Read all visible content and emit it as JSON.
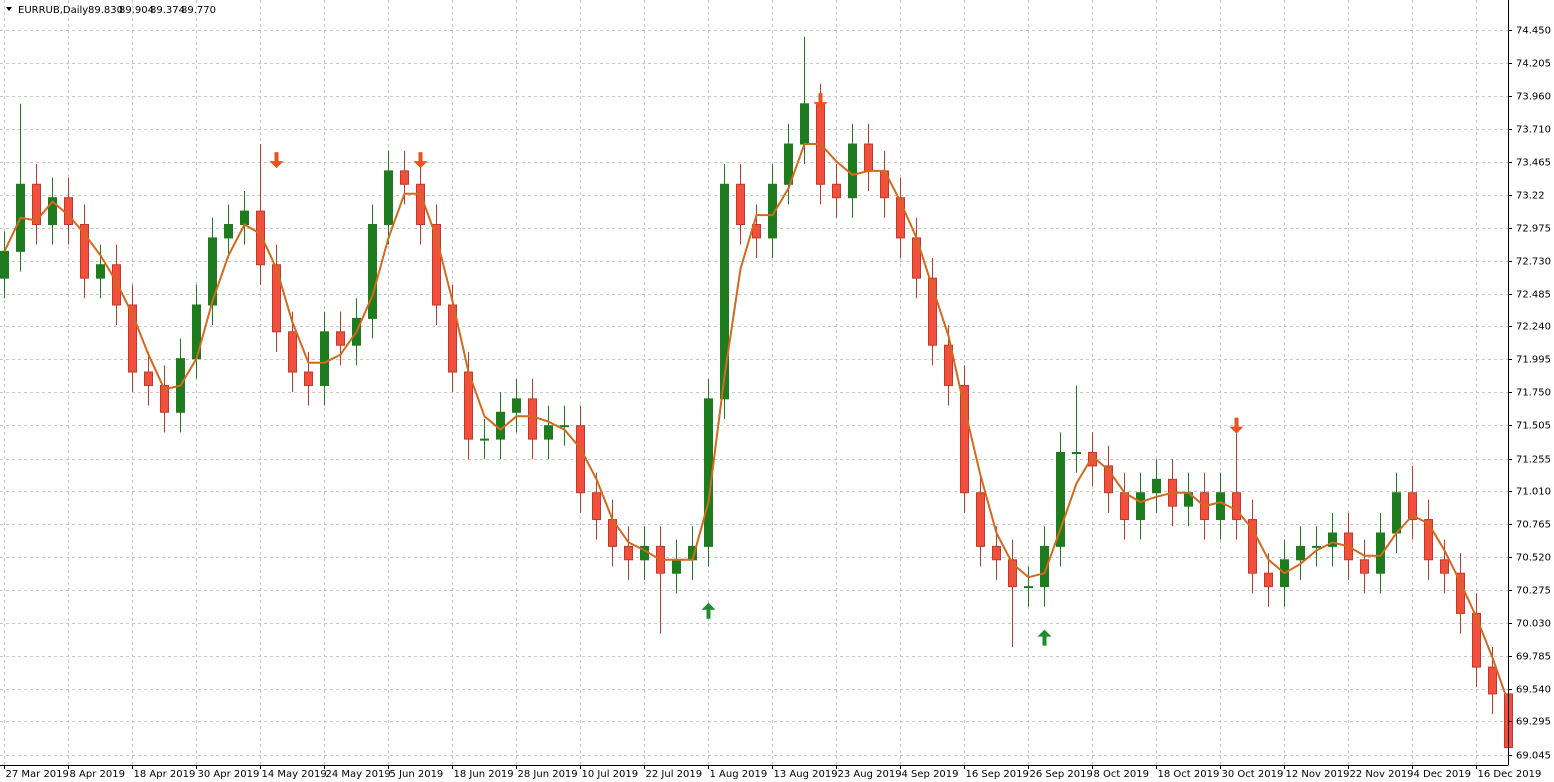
{
  "header": {
    "symbol": "EURRUB,Daily",
    "quote": [
      "89.830",
      "89.904",
      "89.374",
      "89.770"
    ]
  },
  "chart_data": {
    "type": "candlestick",
    "categories": [
      "27 Mar 2019",
      null,
      null,
      null,
      "8 Apr 2019",
      null,
      null,
      null,
      "18 Apr 2019",
      null,
      null,
      null,
      "30 Apr 2019",
      null,
      null,
      null,
      "14 May 2019",
      null,
      null,
      null,
      "24 May 2019",
      null,
      null,
      null,
      "5 Jun 2019",
      null,
      null,
      null,
      "18 Jun 2019",
      null,
      null,
      null,
      "28 Jun 2019",
      null,
      null,
      null,
      "10 Jul 2019",
      null,
      null,
      null,
      "22 Jul 2019",
      null,
      null,
      null,
      "1 Aug 2019",
      null,
      null,
      null,
      "13 Aug 2019",
      null,
      null,
      null,
      "23 Aug 2019",
      null,
      null,
      null,
      "4 Sep 2019",
      null,
      null,
      null,
      "16 Sep 2019",
      null,
      null,
      null,
      "26 Sep 2019",
      null,
      null,
      null,
      "8 Oct 2019",
      null,
      null,
      null,
      "18 Oct 2019",
      null,
      null,
      null,
      "30 Oct 2019",
      null,
      null,
      null,
      "12 Nov 2019",
      null,
      null,
      null,
      "22 Nov 2019",
      null,
      null,
      null,
      "4 Dec 2019",
      null,
      null,
      null,
      "16 Dec 2019",
      null,
      null
    ],
    "open": [
      72.6,
      72.8,
      73.3,
      73.0,
      73.2,
      73.0,
      72.6,
      72.7,
      72.4,
      71.9,
      71.8,
      71.6,
      72.0,
      72.4,
      72.9,
      73.0,
      73.1,
      72.7,
      72.2,
      71.9,
      71.8,
      72.2,
      72.1,
      72.3,
      73.0,
      73.4,
      73.3,
      73.0,
      72.4,
      71.9,
      71.4,
      71.4,
      71.6,
      71.7,
      71.4,
      71.5,
      71.5,
      71.0,
      70.8,
      70.6,
      70.5,
      70.6,
      70.4,
      70.5,
      70.6,
      71.7,
      73.3,
      73.0,
      72.9,
      73.3,
      73.6,
      73.9,
      73.3,
      73.2,
      73.6,
      73.4,
      73.2,
      72.9,
      72.6,
      72.1,
      71.8,
      71.0,
      70.6,
      70.5,
      70.3,
      70.3,
      70.6,
      71.3,
      71.3,
      71.2,
      71.0,
      70.8,
      71.0,
      71.1,
      70.9,
      71.0,
      70.8,
      71.0,
      70.8,
      70.4,
      70.3,
      70.5,
      70.6,
      70.6,
      70.7,
      70.5,
      70.4,
      70.7,
      71.0,
      70.8,
      70.5,
      70.4,
      70.1,
      69.7,
      69.5
    ],
    "high": [
      72.95,
      73.9,
      73.45,
      73.35,
      73.35,
      73.15,
      72.85,
      72.85,
      72.55,
      72.05,
      71.95,
      72.15,
      72.55,
      73.05,
      73.15,
      73.25,
      73.6,
      72.85,
      72.35,
      72.05,
      72.35,
      72.35,
      72.45,
      73.15,
      73.55,
      73.55,
      73.45,
      73.15,
      72.55,
      72.05,
      71.55,
      71.75,
      71.85,
      71.85,
      71.65,
      71.65,
      71.65,
      71.15,
      70.95,
      70.75,
      70.75,
      70.75,
      70.65,
      70.75,
      71.85,
      73.45,
      73.45,
      73.15,
      73.45,
      73.75,
      74.4,
      74.05,
      73.45,
      73.75,
      73.75,
      73.55,
      73.35,
      73.05,
      72.75,
      72.25,
      71.95,
      71.15,
      70.75,
      70.65,
      70.45,
      70.75,
      71.45,
      71.8,
      71.45,
      71.35,
      71.15,
      71.15,
      71.25,
      71.25,
      71.15,
      71.15,
      71.15,
      71.55,
      70.95,
      70.55,
      70.65,
      70.75,
      70.75,
      70.85,
      70.85,
      70.65,
      70.85,
      71.15,
      71.2,
      70.95,
      70.65,
      70.55,
      70.25,
      69.85,
      69.65
    ],
    "low": [
      72.45,
      72.65,
      72.85,
      72.85,
      72.85,
      72.45,
      72.45,
      72.25,
      71.75,
      71.65,
      71.45,
      71.45,
      71.85,
      72.25,
      72.75,
      72.85,
      72.55,
      72.05,
      71.75,
      71.65,
      71.65,
      71.95,
      71.95,
      72.15,
      72.85,
      73.15,
      72.85,
      72.25,
      71.75,
      71.25,
      71.25,
      71.25,
      71.45,
      71.25,
      71.25,
      71.35,
      70.85,
      70.65,
      70.45,
      70.35,
      70.35,
      69.95,
      70.25,
      70.35,
      70.45,
      71.55,
      72.85,
      72.75,
      72.75,
      73.15,
      73.45,
      73.15,
      73.05,
      73.05,
      73.25,
      73.05,
      72.75,
      72.45,
      71.95,
      71.65,
      70.85,
      70.45,
      70.35,
      69.85,
      70.15,
      70.15,
      70.45,
      71.15,
      71.05,
      70.85,
      70.65,
      70.65,
      70.85,
      70.75,
      70.75,
      70.65,
      70.65,
      70.65,
      70.25,
      70.15,
      70.15,
      70.35,
      70.45,
      70.45,
      70.35,
      70.25,
      70.25,
      70.55,
      70.65,
      70.35,
      70.25,
      69.95,
      69.55,
      69.35,
      69.0
    ],
    "close": [
      72.8,
      73.3,
      73.0,
      73.2,
      73.0,
      72.6,
      72.7,
      72.4,
      71.9,
      71.8,
      71.6,
      72.0,
      72.4,
      72.9,
      73.0,
      73.1,
      72.7,
      72.2,
      71.9,
      71.8,
      72.2,
      72.1,
      72.3,
      73.0,
      73.4,
      73.3,
      73.0,
      72.4,
      71.9,
      71.4,
      71.4,
      71.6,
      71.7,
      71.4,
      71.5,
      71.5,
      71.0,
      70.8,
      70.6,
      70.5,
      70.6,
      70.4,
      70.5,
      70.6,
      71.7,
      73.3,
      73.0,
      72.9,
      73.3,
      73.6,
      73.9,
      73.3,
      73.2,
      73.6,
      73.4,
      73.2,
      72.9,
      72.6,
      72.1,
      71.8,
      71.0,
      70.6,
      70.5,
      70.3,
      70.3,
      70.6,
      71.3,
      71.3,
      71.2,
      71.0,
      70.8,
      71.0,
      71.1,
      70.9,
      71.0,
      70.8,
      71.0,
      70.8,
      70.4,
      70.3,
      70.5,
      70.6,
      70.6,
      70.7,
      70.5,
      70.4,
      70.7,
      71.0,
      70.8,
      70.5,
      70.4,
      70.1,
      69.7,
      69.5,
      69.1
    ],
    "ma": [
      72.8,
      73.05,
      73.03,
      73.17,
      73.07,
      72.93,
      72.77,
      72.57,
      72.33,
      72.03,
      71.77,
      71.8,
      72.0,
      72.43,
      72.77,
      73.0,
      72.93,
      72.67,
      72.27,
      71.97,
      71.97,
      72.03,
      72.2,
      72.47,
      72.9,
      73.23,
      73.23,
      72.9,
      72.43,
      71.9,
      71.57,
      71.47,
      71.57,
      71.57,
      71.53,
      71.47,
      71.33,
      71.1,
      70.8,
      70.63,
      70.57,
      70.5,
      70.5,
      70.5,
      70.93,
      71.87,
      72.67,
      73.07,
      73.07,
      73.27,
      73.6,
      73.6,
      73.47,
      73.37,
      73.4,
      73.4,
      73.17,
      72.9,
      72.53,
      72.17,
      71.63,
      71.13,
      70.7,
      70.47,
      70.37,
      70.4,
      70.73,
      71.07,
      71.27,
      71.17,
      71.0,
      70.93,
      70.97,
      71.0,
      71.0,
      70.9,
      70.93,
      70.87,
      70.73,
      70.5,
      70.4,
      70.47,
      70.57,
      70.63,
      70.6,
      70.53,
      70.53,
      70.7,
      70.83,
      70.77,
      70.57,
      70.33,
      70.07,
      69.77,
      69.43
    ],
    "up_signals": [
      null,
      null,
      null,
      null,
      null,
      null,
      null,
      null,
      null,
      null,
      null,
      null,
      null,
      null,
      null,
      null,
      null,
      null,
      null,
      null,
      null,
      null,
      null,
      null,
      null,
      null,
      null,
      null,
      null,
      null,
      null,
      null,
      null,
      null,
      null,
      null,
      null,
      null,
      null,
      null,
      null,
      null,
      null,
      null,
      70.12,
      null,
      null,
      null,
      null,
      null,
      null,
      null,
      null,
      null,
      null,
      null,
      null,
      null,
      null,
      null,
      null,
      null,
      null,
      null,
      null,
      69.92,
      null,
      null,
      null,
      null,
      null,
      null,
      null,
      null,
      null,
      null,
      null,
      null,
      null,
      null,
      null,
      null,
      null,
      null,
      null,
      null,
      null,
      null,
      null,
      null,
      null,
      null,
      null,
      null,
      null
    ],
    "down_signals": [
      null,
      null,
      null,
      null,
      null,
      null,
      null,
      null,
      null,
      null,
      null,
      null,
      null,
      null,
      null,
      null,
      null,
      73.48,
      null,
      null,
      null,
      null,
      null,
      null,
      null,
      null,
      73.48,
      null,
      null,
      null,
      null,
      null,
      null,
      null,
      null,
      null,
      null,
      null,
      null,
      null,
      null,
      null,
      null,
      null,
      null,
      null,
      null,
      null,
      null,
      null,
      null,
      73.92,
      null,
      null,
      null,
      null,
      null,
      null,
      null,
      null,
      null,
      null,
      null,
      null,
      null,
      null,
      null,
      null,
      null,
      null,
      null,
      null,
      null,
      null,
      null,
      null,
      null,
      71.5,
      null,
      null,
      null,
      null,
      null,
      null,
      null,
      null,
      null,
      null,
      null,
      null,
      null,
      null,
      null,
      null,
      null
    ],
    "colors": {
      "bull": "#1e7b1e",
      "bear": "#f0503c",
      "bear_edge": "#c0392b",
      "ma": "#d2691e",
      "up_signal": "#1e8c2c",
      "down_signal": "#f0501e"
    },
    "ylim": [
      68.97,
      74.674
    ],
    "yticks": [
      {
        "value": 74.45,
        "label": "74.450"
      },
      74.205,
      {
        "value": 73.96,
        "label": "73.960"
      },
      {
        "value": 73.71,
        "label": "73.710"
      },
      73.465,
      73.22,
      72.975,
      {
        "value": 72.73,
        "label": "72.730"
      },
      72.485,
      {
        "value": 72.24,
        "label": "72.240"
      },
      71.995,
      {
        "value": 71.75,
        "label": "71.750"
      },
      71.505,
      71.255,
      {
        "value": 71.01,
        "label": "71.010"
      },
      70.765,
      {
        "value": 70.52,
        "label": "70.520"
      },
      70.275,
      {
        "value": 70.03,
        "label": "70.030"
      },
      69.785,
      {
        "value": 69.54,
        "label": "69.540"
      },
      69.295,
      69.045
    ],
    "grid": true
  }
}
